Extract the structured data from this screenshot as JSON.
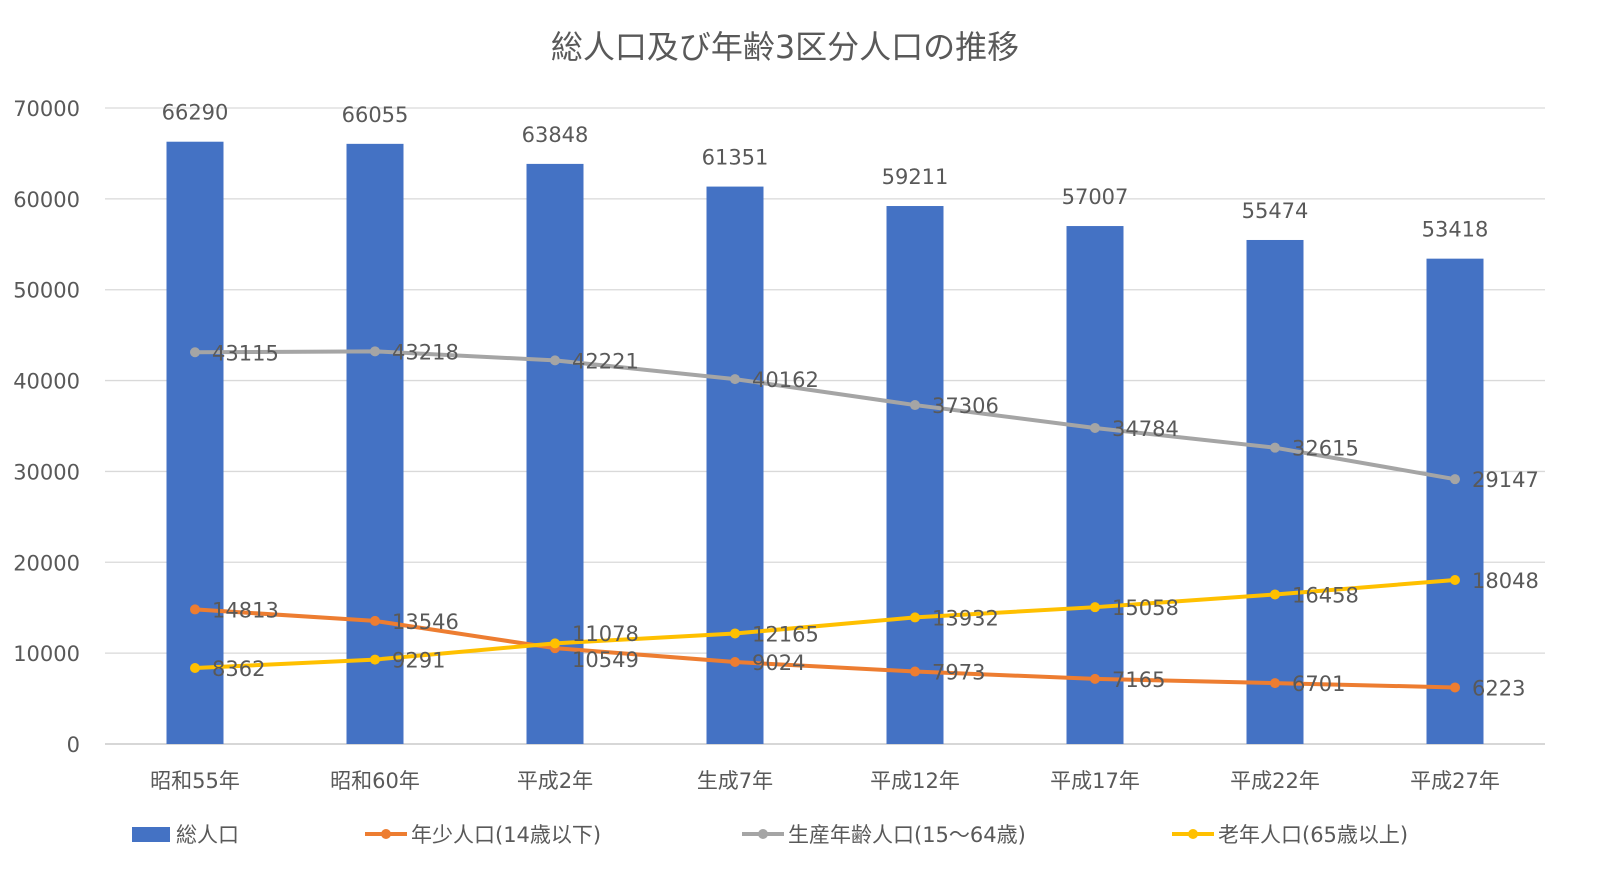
{
  "chart_data": {
    "type": "bar+line",
    "title": "総人口及び年齢3区分人口の推移",
    "xlabel": "",
    "ylabel": "",
    "ylim": [
      0,
      70000
    ],
    "yticks": [
      0,
      10000,
      20000,
      30000,
      40000,
      50000,
      60000,
      70000
    ],
    "grid": true,
    "legend_position": "bottom",
    "categories": [
      "昭和55年",
      "昭和60年",
      "平成2年",
      "生成7年",
      "平成12年",
      "平成17年",
      "平成22年",
      "平成27年"
    ],
    "series": [
      {
        "name": "総人口",
        "type": "bar",
        "color": "#4472C4",
        "values": [
          66290,
          66055,
          63848,
          61351,
          59211,
          57007,
          55474,
          53418
        ]
      },
      {
        "name": "年少人口(14歳以下)",
        "type": "line",
        "color": "#ED7D31",
        "values": [
          14813,
          13546,
          10549,
          9024,
          7973,
          7165,
          6701,
          6223
        ]
      },
      {
        "name": "生産年齢人口(15～64歳)",
        "type": "line",
        "color": "#A5A5A5",
        "values": [
          43115,
          43218,
          42221,
          40162,
          37306,
          34784,
          32615,
          29147
        ]
      },
      {
        "name": "老年人口(65歳以上)",
        "type": "line",
        "color": "#FFC000",
        "values": [
          8362,
          9291,
          11078,
          12165,
          13932,
          15058,
          16458,
          18048
        ]
      }
    ]
  }
}
